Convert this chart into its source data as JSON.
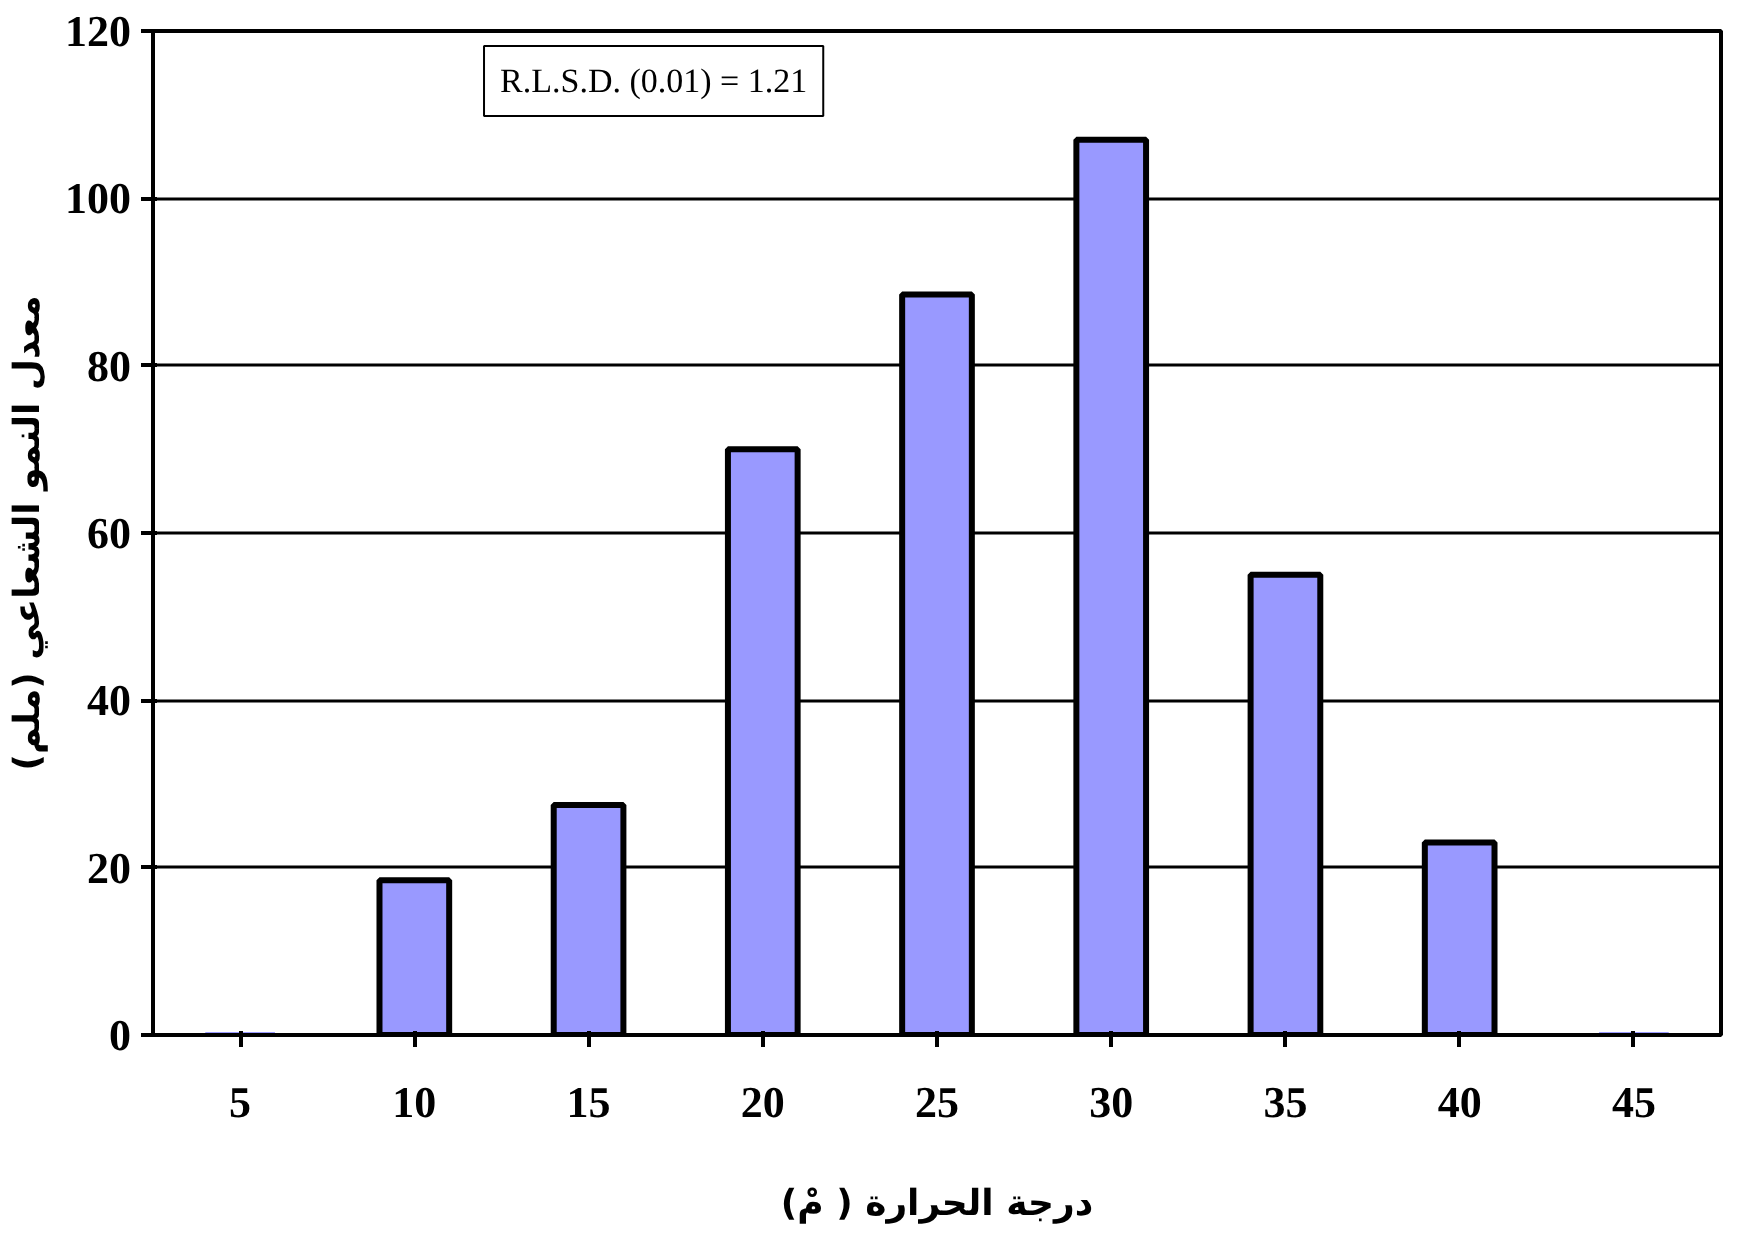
{
  "chart_data": {
    "type": "bar",
    "xlabel": "درجة الحرارة ( مْ)",
    "ylabel": "معدل النمو الشعاعي (ملم)",
    "categories": [
      "5",
      "10",
      "15",
      "20",
      "25",
      "30",
      "35",
      "40",
      "45"
    ],
    "values": [
      0,
      18.5,
      27.5,
      70,
      88.5,
      107,
      55,
      23,
      0
    ],
    "color": "#9999ff",
    "ylim": [
      0,
      120
    ],
    "yticks": [
      0,
      20,
      40,
      60,
      80,
      100,
      120
    ],
    "grid": "y",
    "annotations": [
      "R.L.S.D. (0.01) = 1.21"
    ]
  }
}
